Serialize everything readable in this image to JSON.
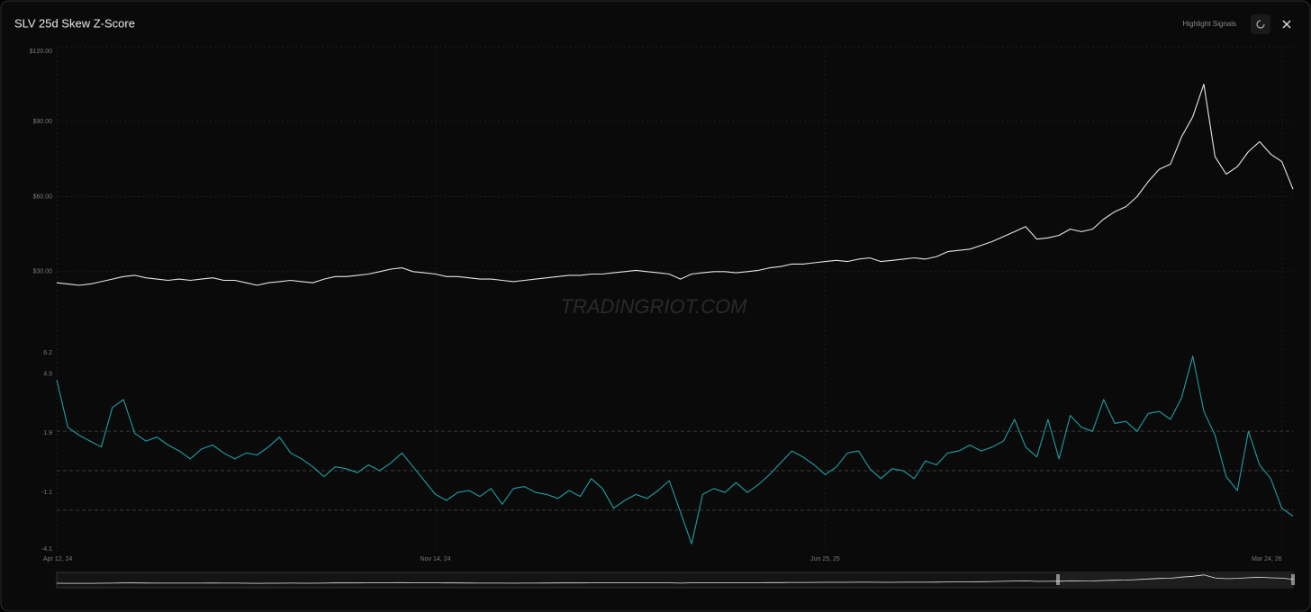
{
  "header": {
    "symbol": "SLV",
    "title": "25d Skew Z-Score",
    "highlight_button": "Highlight Signals"
  },
  "watermark": "TRADINGRIOT.COM",
  "chart_data": [
    {
      "type": "line",
      "series": [
        {
          "color": "#e6e6e6",
          "values": [
            25.5,
            25,
            24.5,
            25,
            26,
            27,
            28,
            28.5,
            27.5,
            27,
            26.5,
            27,
            26.5,
            27,
            27.5,
            26.5,
            26.5,
            25.5,
            24.5,
            25.5,
            26,
            26.5,
            26,
            25.5,
            27,
            28,
            28,
            28.5,
            29,
            30,
            31,
            31.5,
            30,
            29.5,
            29,
            28,
            28,
            27.5,
            27,
            27,
            26.5,
            26,
            26.5,
            27,
            27.5,
            28,
            28.5,
            28.5,
            29,
            29,
            29.5,
            30,
            30.5,
            30,
            29.5,
            29,
            27,
            29,
            29.5,
            30,
            30,
            29.5,
            30,
            30.5,
            31.5,
            32,
            33,
            33,
            33.5,
            34,
            34.5,
            34,
            35,
            35.5,
            34,
            34.5,
            35,
            35.5,
            35,
            36,
            38,
            38.5,
            39,
            40.5,
            42,
            44,
            46,
            48,
            43,
            43.5,
            44.5,
            47,
            46,
            47,
            51,
            54,
            56,
            60,
            66,
            71,
            73,
            84,
            92,
            105,
            76,
            69,
            72,
            78,
            82,
            77,
            74,
            63
          ]
        }
      ],
      "ylim": [
        0,
        120
      ],
      "yticks": [
        {
          "value": 120,
          "label": "$120.00"
        },
        {
          "value": 90,
          "label": "$90.00"
        },
        {
          "value": 60,
          "label": "$60.00"
        },
        {
          "value": 30,
          "label": "$30.00"
        }
      ],
      "grid": true
    },
    {
      "type": "line",
      "categories": [
        "Apr 12, 24",
        null,
        null,
        null,
        null,
        null,
        null,
        null,
        null,
        null,
        null,
        null,
        null,
        null,
        null,
        null,
        null,
        null,
        null,
        null,
        null,
        null,
        null,
        null,
        null,
        null,
        null,
        null,
        null,
        null,
        null,
        null,
        null,
        null,
        "Nov 14, 24",
        null,
        null,
        null,
        null,
        null,
        null,
        null,
        null,
        null,
        null,
        null,
        null,
        null,
        null,
        null,
        null,
        null,
        null,
        null,
        null,
        null,
        null,
        null,
        null,
        null,
        null,
        null,
        null,
        null,
        null,
        null,
        null,
        null,
        null,
        "Jun 25, 25",
        null,
        null,
        null,
        null,
        null,
        null,
        null,
        null,
        null,
        null,
        null,
        null,
        null,
        null,
        null,
        null,
        null,
        null,
        null,
        null,
        null,
        null,
        null,
        null,
        null,
        null,
        null,
        null,
        null,
        null,
        null,
        null,
        null,
        null,
        null,
        null,
        null,
        null,
        null,
        null,
        "Mar 24, 26",
        null
      ],
      "series": [
        {
          "color": "#1f9ea3",
          "values": [
            4.6,
            2.2,
            1.8,
            1.5,
            1.2,
            3.2,
            3.6,
            1.9,
            1.5,
            1.7,
            1.3,
            1.0,
            0.6,
            1.1,
            1.3,
            0.9,
            0.6,
            0.9,
            0.8,
            1.2,
            1.7,
            0.9,
            0.6,
            0.2,
            -0.3,
            0.2,
            0.1,
            -0.1,
            0.3,
            0.0,
            0.4,
            0.9,
            0.2,
            -0.5,
            -1.2,
            -1.5,
            -1.1,
            -1.0,
            -1.3,
            -0.9,
            -1.7,
            -0.9,
            -0.8,
            -1.1,
            -1.2,
            -1.4,
            -1.0,
            -1.3,
            -0.4,
            -0.9,
            -1.9,
            -1.5,
            -1.2,
            -1.4,
            -1.0,
            -0.5,
            -2.1,
            -3.7,
            -1.2,
            -0.9,
            -1.1,
            -0.6,
            -1.1,
            -0.7,
            -0.2,
            0.4,
            1.0,
            0.7,
            0.3,
            -0.2,
            0.2,
            0.9,
            1.0,
            0.1,
            -0.4,
            0.1,
            0.0,
            -0.4,
            0.5,
            0.3,
            0.9,
            1.0,
            1.3,
            1.0,
            1.2,
            1.5,
            2.6,
            1.2,
            0.7,
            2.6,
            0.6,
            2.8,
            2.2,
            2.0,
            3.6,
            2.4,
            2.5,
            2.0,
            2.9,
            3.0,
            2.6,
            3.7,
            5.8,
            3.0,
            1.8,
            -0.3,
            -1.0,
            2.0,
            0.3,
            -0.4,
            -1.9,
            -2.3
          ]
        }
      ],
      "ylim": [
        -4.1,
        6.2
      ],
      "yticks": [
        6.2,
        4.9,
        1.9,
        -1.1,
        -4.1
      ],
      "hlines": [
        2,
        0,
        -2
      ],
      "grid": true
    }
  ]
}
